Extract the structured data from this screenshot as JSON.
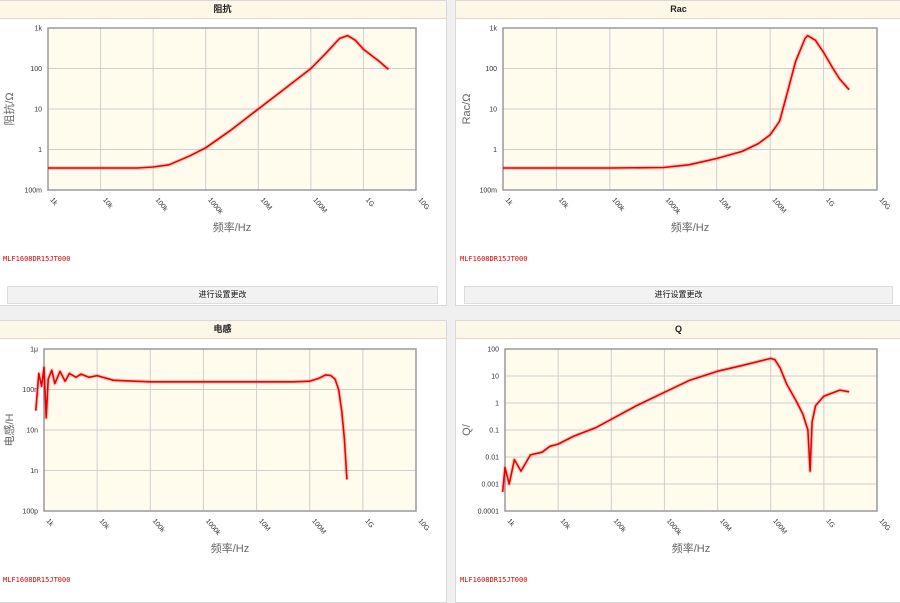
{
  "part_number": "MLF1608DR15JT000",
  "settings_button_label": "进行设置更改",
  "x_ticks": [
    "1k",
    "10k",
    "100k",
    "1000k",
    "10M",
    "100M",
    "1G",
    "10G"
  ],
  "x_label": "频率/Hz",
  "colors": {
    "curve": "#e60000",
    "plot_bg": "#fffbed",
    "grid": "#cfcfcf",
    "title_bg": "#fdf7e7"
  },
  "chart_data": [
    {
      "type": "line",
      "title": "阻抗",
      "ylabel": "阻抗/Ω",
      "xlabel": "频率/Hz",
      "xscale": "log",
      "yscale": "log",
      "xlim": [
        1000,
        10000000000
      ],
      "ylim": [
        0.1,
        1000
      ],
      "y_ticks": [
        "100m",
        "1",
        "10",
        "100",
        "1k"
      ],
      "x": [
        1000,
        10000,
        50000,
        100000,
        200000,
        500000,
        1000000,
        3000000,
        10000000,
        30000000,
        100000000,
        200000000,
        350000000,
        500000000,
        700000000,
        1000000000,
        2000000000,
        3000000000
      ],
      "y": [
        0.35,
        0.35,
        0.35,
        0.37,
        0.42,
        0.7,
        1.1,
        3,
        10,
        30,
        100,
        250,
        550,
        650,
        500,
        300,
        150,
        95
      ]
    },
    {
      "type": "line",
      "title": "Rac",
      "ylabel": "Rac/Ω",
      "xlabel": "频率/Hz",
      "xscale": "log",
      "yscale": "log",
      "xlim": [
        1000,
        10000000000
      ],
      "ylim": [
        0.1,
        1000
      ],
      "y_ticks": [
        "100m",
        "1",
        "10",
        "100",
        "1k"
      ],
      "x": [
        1000,
        10000,
        100000,
        1000000,
        3000000,
        10000000,
        30000000,
        60000000,
        100000000,
        150000000,
        200000000,
        300000000,
        450000000,
        500000000,
        700000000,
        1000000000,
        1500000000,
        2000000000,
        3000000000
      ],
      "y": [
        0.35,
        0.35,
        0.35,
        0.36,
        0.42,
        0.6,
        0.9,
        1.4,
        2.3,
        5,
        20,
        150,
        550,
        650,
        500,
        250,
        100,
        55,
        30
      ]
    },
    {
      "type": "line",
      "title": "电感",
      "ylabel": "电感/H",
      "xlabel": "频率/Hz",
      "xscale": "log",
      "yscale": "log",
      "xlim": [
        1000,
        10000000000
      ],
      "ylim": [
        1e-10,
        1e-06
      ],
      "y_ticks": [
        "100p",
        "1n",
        "10n",
        "100n",
        "1μ"
      ],
      "x": [
        700,
        800,
        900,
        1000,
        1100,
        1200,
        1400,
        1600,
        2000,
        2500,
        3000,
        4000,
        5000,
        7000,
        10000,
        20000,
        50000,
        100000,
        1000000,
        10000000,
        50000000,
        100000000,
        150000000,
        200000000,
        250000000,
        300000000,
        350000000,
        400000000,
        450000000,
        500000000
      ],
      "y": [
        3e-08,
        2.5e-07,
        1.2e-07,
        3.5e-07,
        2e-08,
        1.8e-07,
        3e-07,
        1.4e-07,
        2.8e-07,
        1.6e-07,
        2.5e-07,
        2e-07,
        2.4e-07,
        2e-07,
        2.2e-07,
        1.7e-07,
        1.6e-07,
        1.55e-07,
        1.55e-07,
        1.55e-07,
        1.55e-07,
        1.6e-07,
        1.9e-07,
        2.3e-07,
        2.2e-07,
        1.8e-07,
        1e-07,
        3e-08,
        6e-09,
        6e-10
      ]
    },
    {
      "type": "line",
      "title": "Q",
      "ylabel": "Q/",
      "xlabel": "频率/Hz",
      "xscale": "log",
      "yscale": "log",
      "xlim": [
        1000,
        10000000000
      ],
      "ylim": [
        0.0001,
        100
      ],
      "y_ticks": [
        "0.0001",
        "0.001",
        "0.01",
        "0.1",
        "1",
        "10",
        "100"
      ],
      "x": [
        900,
        1000,
        1200,
        1500,
        2000,
        3000,
        5000,
        7000,
        10000,
        20000,
        50000,
        100000,
        300000,
        1000000,
        3000000,
        10000000,
        30000000,
        100000000,
        120000000,
        150000000,
        200000000,
        300000000,
        400000000,
        500000000,
        550000000,
        600000000,
        700000000,
        1000000000,
        2000000000,
        3000000000
      ],
      "y": [
        0.0005,
        0.004,
        0.001,
        0.008,
        0.003,
        0.012,
        0.015,
        0.025,
        0.03,
        0.06,
        0.12,
        0.25,
        0.8,
        2.5,
        7,
        15,
        25,
        45,
        40,
        20,
        5,
        1.2,
        0.4,
        0.1,
        0.003,
        0.2,
        0.8,
        1.8,
        3,
        2.6
      ]
    }
  ]
}
